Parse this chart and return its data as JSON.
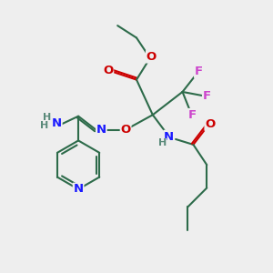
{
  "bg_color": "#eeeeee",
  "bond_color": "#2d6b4a",
  "N_color": "#1a1aff",
  "O_color": "#cc0000",
  "F_color": "#cc44cc",
  "H_color": "#5a8a7a",
  "lw": 1.5,
  "fs": 9.5,
  "fs_small": 8.0,
  "figsize": [
    3.0,
    3.0
  ],
  "dpi": 100,
  "xlim": [
    0,
    10
  ],
  "ylim": [
    0,
    10
  ]
}
